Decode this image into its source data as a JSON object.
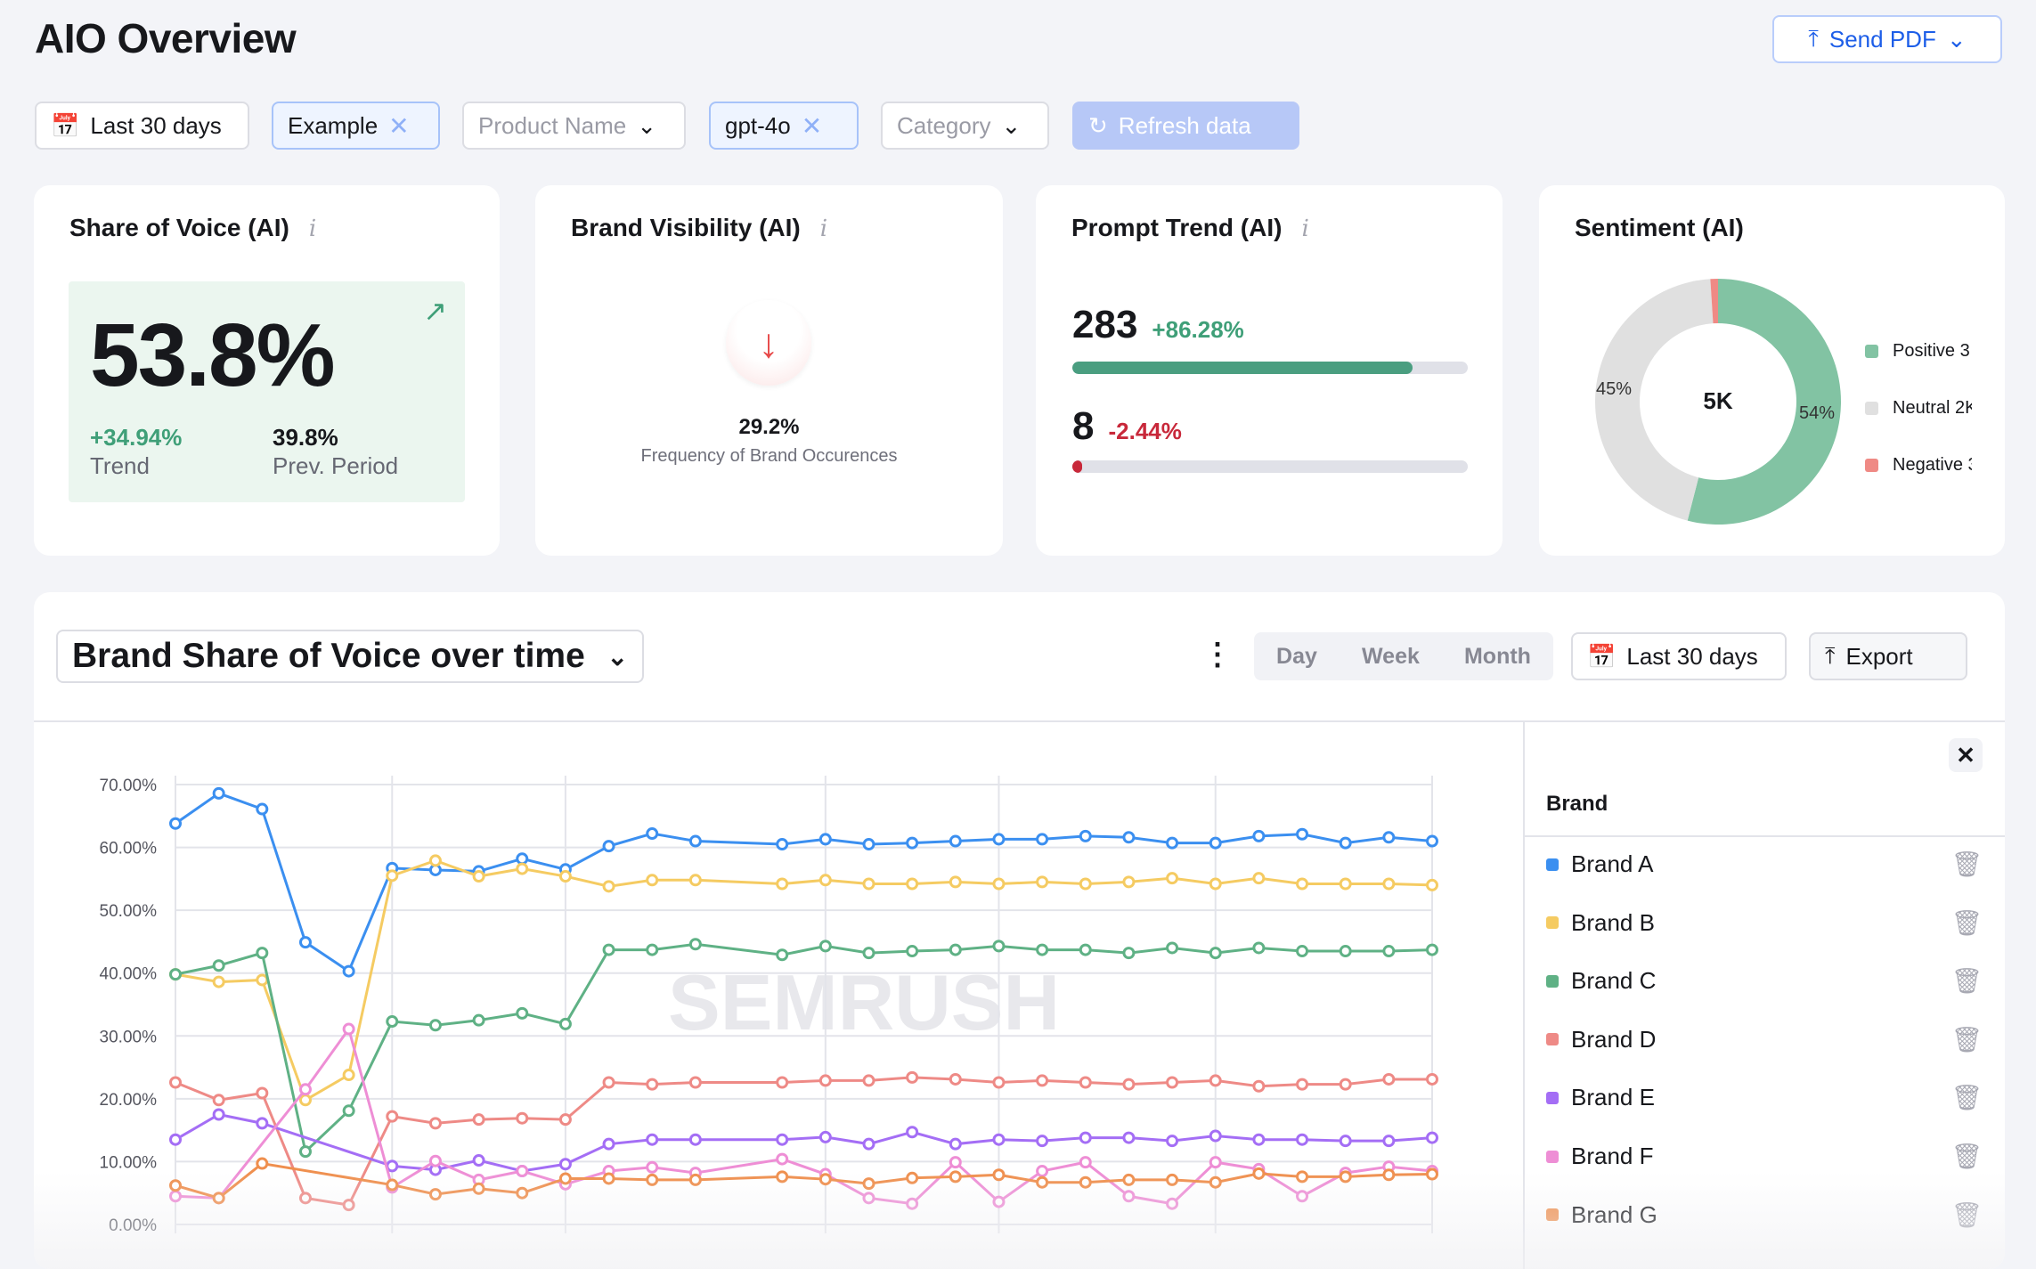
{
  "header": {
    "title": "AIO Overview",
    "send_pdf": "Send PDF"
  },
  "filters": {
    "date": "Last 30 days",
    "project": "Example",
    "product_placeholder": "Product Name",
    "model": "gpt-4o",
    "category_placeholder": "Category",
    "refresh": "Refresh data"
  },
  "cards": {
    "sov": {
      "title": "Share of Voice (AI)",
      "value": "53.8%",
      "trend_value": "+34.94%",
      "trend_label": "Trend",
      "prev_value": "39.8%",
      "prev_label": "Prev. Period"
    },
    "visibility": {
      "title": "Brand Visibility (AI)",
      "value": "29.2%",
      "label": "Frequency of Brand Occurences"
    },
    "prompt": {
      "title": "Prompt Trend (AI)",
      "count1": "283",
      "change1": "+86.28%",
      "fill1": 0.86,
      "count2": "8",
      "change2": "-2.44%",
      "fill2": 0.02
    },
    "sentiment": {
      "title": "Sentiment (AI)",
      "total": "5K",
      "slices": [
        {
          "label": "Positive 3",
          "pct": 54,
          "pct_label": "54%",
          "color": "#82c3a3"
        },
        {
          "label": "Neutral 2K",
          "pct": 45,
          "pct_label": "45%",
          "color": "#e0e0e0"
        },
        {
          "label": "Negative 3",
          "pct": 1,
          "color": "#ef8a85"
        }
      ]
    }
  },
  "chart_panel": {
    "title": "Brand Share of Voice over time",
    "granularity": [
      "Day",
      "Week",
      "Month"
    ],
    "date": "Last 30 days",
    "export": "Export",
    "watermark": "SEMRUSH",
    "legend_header": "Brand"
  },
  "chart_data": {
    "type": "line",
    "ylim": [
      0,
      70
    ],
    "yticks": [
      "0.00%",
      "10.00%",
      "20.00%",
      "30.00%",
      "40.00%",
      "50.00%",
      "60.00%",
      "70.00%"
    ],
    "grid": true,
    "series": [
      {
        "name": "Brand A",
        "color": "#3b8ff0",
        "values": [
          63.8,
          68.6,
          66.1,
          44.9,
          40.3,
          56.7,
          56.4,
          56.2,
          58.2,
          56.5,
          60.2,
          62.2,
          61.0,
          null,
          60.5,
          61.3,
          60.5,
          60.7,
          61.0,
          61.3,
          61.3,
          61.8,
          61.6,
          60.7,
          60.7,
          61.8,
          62.1,
          60.7,
          61.6,
          61.0
        ]
      },
      {
        "name": "Brand B",
        "color": "#f5cb62",
        "values": [
          39.8,
          38.6,
          38.9,
          19.8,
          23.8,
          55.5,
          57.9,
          55.4,
          56.6,
          55.4,
          53.8,
          54.8,
          54.8,
          null,
          54.2,
          54.8,
          54.2,
          54.2,
          54.5,
          54.2,
          54.5,
          54.2,
          54.5,
          55.1,
          54.2,
          55.1,
          54.2,
          54.2,
          54.2,
          54.0
        ]
      },
      {
        "name": "Brand C",
        "color": "#5fb185",
        "values": [
          39.8,
          41.2,
          43.2,
          11.6,
          18.1,
          32.3,
          31.7,
          32.5,
          33.6,
          31.9,
          43.7,
          43.7,
          44.6,
          null,
          42.9,
          44.3,
          43.2,
          43.5,
          43.7,
          44.3,
          43.7,
          43.7,
          43.2,
          44.0,
          43.2,
          44.0,
          43.5,
          43.5,
          43.5,
          43.7
        ]
      },
      {
        "name": "Brand D",
        "color": "#ee8a86",
        "values": [
          22.6,
          19.8,
          20.9,
          4.2,
          3.1,
          17.2,
          16.1,
          16.7,
          16.9,
          16.7,
          22.6,
          22.3,
          22.6,
          null,
          22.6,
          22.9,
          22.9,
          23.4,
          23.1,
          22.6,
          22.9,
          22.6,
          22.3,
          22.6,
          22.9,
          22.0,
          22.3,
          22.3,
          23.1,
          23.1
        ]
      },
      {
        "name": "Brand E",
        "color": "#a46ef5",
        "values": [
          13.5,
          17.5,
          16.1,
          null,
          null,
          9.3,
          8.7,
          10.2,
          8.5,
          9.6,
          12.8,
          13.5,
          13.5,
          null,
          13.5,
          13.9,
          12.8,
          14.7,
          12.8,
          13.5,
          13.3,
          13.8,
          13.8,
          13.3,
          14.1,
          13.5,
          13.5,
          13.3,
          13.3,
          13.8
        ]
      },
      {
        "name": "Brand F",
        "color": "#ee8ed5",
        "values": [
          4.5,
          4.2,
          null,
          21.5,
          31.1,
          5.9,
          10.1,
          7.1,
          8.5,
          6.4,
          8.5,
          9.1,
          8.2,
          null,
          10.4,
          8.0,
          4.2,
          3.3,
          9.9,
          3.6,
          8.5,
          9.9,
          4.5,
          3.3,
          9.9,
          8.8,
          4.5,
          8.2,
          9.2,
          8.5
        ]
      },
      {
        "name": "Brand G",
        "color": "#ef8f4e",
        "values": [
          6.2,
          4.2,
          9.7,
          null,
          null,
          6.3,
          4.8,
          5.7,
          5.0,
          7.3,
          7.3,
          7.1,
          7.1,
          null,
          7.6,
          7.2,
          6.5,
          7.4,
          7.6,
          7.9,
          6.7,
          6.7,
          7.1,
          7.1,
          6.7,
          8.1,
          7.6,
          7.6,
          7.9,
          8.0
        ]
      }
    ]
  }
}
